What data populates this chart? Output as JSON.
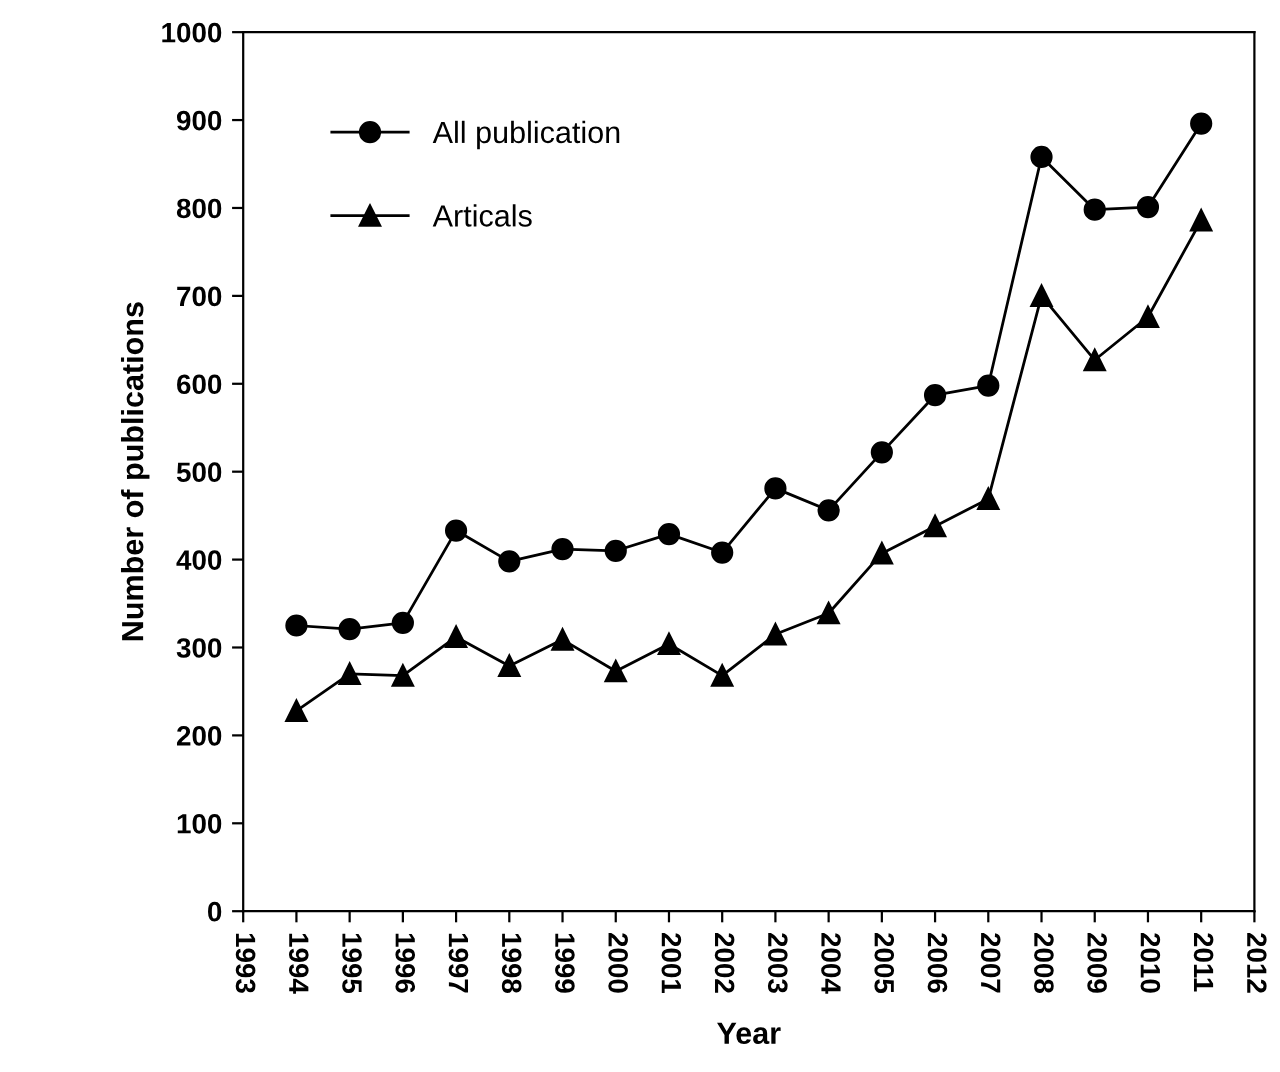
{
  "chart_data": {
    "type": "line",
    "xlabel": "Year",
    "ylabel": "Number of publications",
    "x": [
      1994,
      1995,
      1996,
      1997,
      1998,
      1999,
      2000,
      2001,
      2002,
      2003,
      2004,
      2005,
      2006,
      2007,
      2008,
      2009,
      2010,
      2011
    ],
    "series": [
      {
        "name": "All publication",
        "color": "#000000",
        "marker": "circle",
        "values": [
          325,
          321,
          328,
          433,
          398,
          412,
          410,
          429,
          408,
          481,
          456,
          522,
          587,
          598,
          858,
          798,
          801,
          896
        ]
      },
      {
        "name": "Articals",
        "color": "#000000",
        "marker": "triangle",
        "values": [
          228,
          270,
          268,
          312,
          279,
          309,
          273,
          304,
          268,
          315,
          339,
          407,
          438,
          469,
          700,
          627,
          676,
          786
        ]
      }
    ],
    "xlim": [
      1993,
      2012
    ],
    "xticks": [
      1993,
      1994,
      1995,
      1996,
      1997,
      1998,
      1999,
      2000,
      2001,
      2002,
      2003,
      2004,
      2005,
      2006,
      2007,
      2008,
      2009,
      2010,
      2011,
      2012
    ],
    "ylim": [
      0,
      1000
    ],
    "yticks": [
      0,
      100,
      200,
      300,
      400,
      500,
      600,
      700,
      800,
      900,
      1000
    ],
    "grid": false,
    "legend": "top left",
    "line_style": "solid"
  }
}
